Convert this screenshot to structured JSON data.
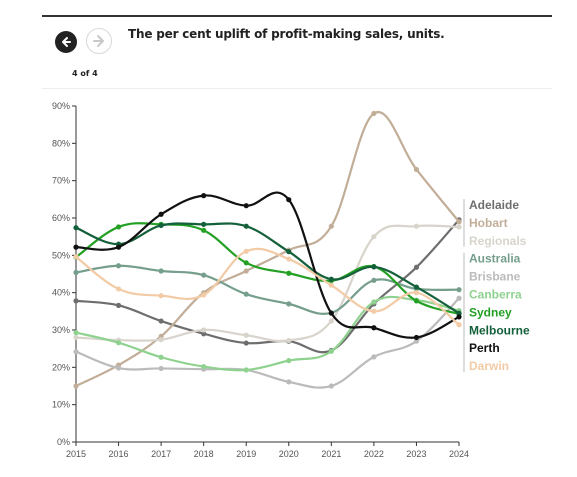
{
  "header": {
    "title": "The per cent uplift of profit-making sales, units.",
    "counter": "4 of 4",
    "back_icon": "arrow-left-icon",
    "next_icon": "arrow-right-icon"
  },
  "chart_data": {
    "type": "line",
    "title": "The per cent uplift of profit-making sales, units.",
    "xlabel": "",
    "ylabel": "",
    "x": [
      2015,
      2016,
      2017,
      2018,
      2019,
      2020,
      2021,
      2022,
      2023,
      2024
    ],
    "x_tick_labels": [
      "2015",
      "2016",
      "2017",
      "2018",
      "2019",
      "2020",
      "2021",
      "2022",
      "2023",
      "2024"
    ],
    "ylim": [
      0,
      90
    ],
    "y_ticks": [
      0,
      10,
      20,
      30,
      40,
      50,
      60,
      70,
      80,
      90
    ],
    "y_tick_labels": [
      "0%",
      "10%",
      "20%",
      "30%",
      "40%",
      "50%",
      "60%",
      "70%",
      "80%",
      "90%"
    ],
    "grid": false,
    "legend_placement": "right",
    "series": [
      {
        "name": "Adelaide",
        "color": "#6e6e6e",
        "values": [
          37.8,
          36.6,
          32.4,
          29.0,
          26.5,
          27.0,
          24.5,
          37.0,
          46.8,
          59.5
        ]
      },
      {
        "name": "Hobart",
        "color": "#c2ae98",
        "values": [
          15.0,
          20.6,
          28.3,
          40.0,
          45.8,
          51.4,
          57.8,
          88.0,
          73.0,
          59.0
        ]
      },
      {
        "name": "Regionals",
        "color": "#d8d4cc",
        "values": [
          28.0,
          27.3,
          27.4,
          30.0,
          28.6,
          27.2,
          32.4,
          55.0,
          57.8,
          57.6
        ]
      },
      {
        "name": "Australia",
        "color": "#759e8c",
        "values": [
          45.4,
          47.2,
          45.8,
          44.7,
          39.6,
          37.0,
          34.6,
          43.3,
          41.0,
          40.8
        ]
      },
      {
        "name": "Brisbane",
        "color": "#bbbbbb",
        "values": [
          24.2,
          19.8,
          19.7,
          19.5,
          19.3,
          16.1,
          15.0,
          22.8,
          27.0,
          38.5
        ]
      },
      {
        "name": "Canberra",
        "color": "#8fd28f",
        "values": [
          29.3,
          26.6,
          22.7,
          20.2,
          19.3,
          21.8,
          24.3,
          37.5,
          38.0,
          35.2
        ]
      },
      {
        "name": "Sydney",
        "color": "#24a024",
        "values": [
          49.5,
          57.6,
          58.3,
          56.7,
          48.0,
          45.2,
          43.2,
          47.0,
          37.8,
          34.3
        ]
      },
      {
        "name": "Melbourne",
        "color": "#14603a",
        "values": [
          57.4,
          53.0,
          58.0,
          58.3,
          57.8,
          51.0,
          43.6,
          46.9,
          41.5,
          34.5
        ]
      },
      {
        "name": "Perth",
        "color": "#111111",
        "values": [
          52.2,
          52.2,
          61.0,
          66.0,
          63.3,
          64.9,
          34.5,
          30.6,
          28.0,
          33.5
        ]
      },
      {
        "name": "Darwin",
        "color": "#f2cba6",
        "values": [
          49.6,
          41.0,
          39.2,
          39.4,
          51.1,
          49.0,
          42.0,
          35.0,
          40.0,
          31.4
        ]
      }
    ]
  }
}
